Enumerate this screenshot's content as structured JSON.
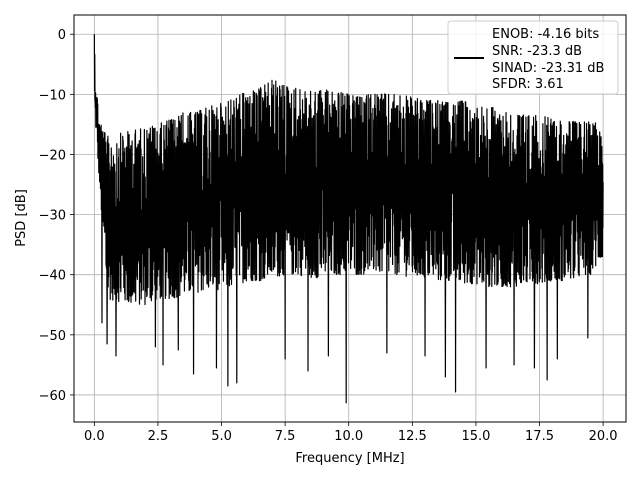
{
  "chart_data": {
    "type": "line",
    "xlabel": "Frequency [MHz]",
    "ylabel": "PSD [dB]",
    "xlim": [
      -0.8,
      20.9
    ],
    "ylim": [
      -64.5,
      3.2
    ],
    "grid": true,
    "x_ticks": [
      0.0,
      2.5,
      5.0,
      7.5,
      10.0,
      12.5,
      15.0,
      17.5,
      20.0
    ],
    "x_tick_labels": [
      "0.0",
      "2.5",
      "5.0",
      "7.5",
      "10.0",
      "12.5",
      "15.0",
      "17.5",
      "20.0"
    ],
    "y_ticks": [
      0,
      -10,
      -20,
      -30,
      -40,
      -50,
      -60
    ],
    "y_tick_labels": [
      "0",
      "−10",
      "−20",
      "−30",
      "−40",
      "−50",
      "−60"
    ],
    "legend_position": "top-right",
    "legend_lines": [
      "ENOB: -4.16 bits",
      "SNR: -23.3 dB",
      "SINAD: -23.31 dB",
      "SFDR: 3.61"
    ],
    "line_color": "#000000",
    "series": [
      {
        "upper_envelope": [
          [
            0.0,
            0.0
          ],
          [
            0.05,
            -7.5
          ],
          [
            0.2,
            -14.0
          ],
          [
            0.5,
            -17.0
          ],
          [
            1.0,
            -16.5
          ],
          [
            1.5,
            -16.0
          ],
          [
            2.0,
            -15.5
          ],
          [
            2.5,
            -15.0
          ],
          [
            3.0,
            -14.0
          ],
          [
            3.5,
            -13.0
          ],
          [
            4.0,
            -13.0
          ],
          [
            4.5,
            -12.0
          ],
          [
            5.0,
            -11.5
          ],
          [
            5.5,
            -10.5
          ],
          [
            6.0,
            -9.5
          ],
          [
            6.5,
            -9.0
          ],
          [
            7.0,
            -7.5
          ],
          [
            7.5,
            -8.5
          ],
          [
            8.0,
            -9.0
          ],
          [
            8.5,
            -9.5
          ],
          [
            9.0,
            -9.0
          ],
          [
            9.5,
            -9.5
          ],
          [
            10.0,
            -10.0
          ],
          [
            10.5,
            -10.5
          ],
          [
            11.0,
            -9.5
          ],
          [
            11.5,
            -10.0
          ],
          [
            12.0,
            -10.0
          ],
          [
            12.5,
            -10.5
          ],
          [
            13.0,
            -11.0
          ],
          [
            13.5,
            -11.0
          ],
          [
            14.0,
            -11.5
          ],
          [
            14.5,
            -11.0
          ],
          [
            15.0,
            -12.0
          ],
          [
            15.5,
            -12.0
          ],
          [
            16.0,
            -12.5
          ],
          [
            16.5,
            -13.0
          ],
          [
            17.0,
            -13.5
          ],
          [
            17.5,
            -13.5
          ],
          [
            18.0,
            -14.0
          ],
          [
            18.5,
            -14.5
          ],
          [
            19.0,
            -14.5
          ],
          [
            19.5,
            -14.5
          ],
          [
            20.0,
            -14.5
          ]
        ],
        "lower_envelope": [
          [
            0.0,
            -12.0
          ],
          [
            0.5,
            -44.0
          ],
          [
            1.0,
            -44.5
          ],
          [
            1.5,
            -45.0
          ],
          [
            2.0,
            -45.0
          ],
          [
            2.5,
            -44.0
          ],
          [
            3.0,
            -44.0
          ],
          [
            3.5,
            -43.5
          ],
          [
            4.0,
            -43.0
          ],
          [
            4.5,
            -42.5
          ],
          [
            5.0,
            -42.5
          ],
          [
            5.5,
            -42.0
          ],
          [
            6.0,
            -41.0
          ],
          [
            6.5,
            -41.0
          ],
          [
            7.0,
            -40.5
          ],
          [
            7.5,
            -40.0
          ],
          [
            8.0,
            -40.0
          ],
          [
            8.5,
            -40.5
          ],
          [
            9.0,
            -40.5
          ],
          [
            9.5,
            -40.0
          ],
          [
            10.0,
            -40.0
          ],
          [
            10.5,
            -40.0
          ],
          [
            11.0,
            -39.5
          ],
          [
            11.5,
            -40.0
          ],
          [
            12.0,
            -40.0
          ],
          [
            12.5,
            -40.5
          ],
          [
            13.0,
            -40.5
          ],
          [
            13.5,
            -41.0
          ],
          [
            14.0,
            -41.0
          ],
          [
            14.5,
            -41.5
          ],
          [
            15.0,
            -41.5
          ],
          [
            15.5,
            -42.0
          ],
          [
            16.0,
            -42.0
          ],
          [
            16.5,
            -42.0
          ],
          [
            17.0,
            -41.5
          ],
          [
            17.5,
            -41.5
          ],
          [
            18.0,
            -41.0
          ],
          [
            18.5,
            -41.0
          ],
          [
            19.0,
            -40.5
          ],
          [
            19.5,
            -40.0
          ],
          [
            20.0,
            -37.0
          ]
        ],
        "spikes": [
          [
            0.3,
            -48.0
          ],
          [
            0.5,
            -51.5
          ],
          [
            0.85,
            -53.5
          ],
          [
            2.4,
            -52.0
          ],
          [
            2.7,
            -55.0
          ],
          [
            3.3,
            -52.5
          ],
          [
            3.9,
            -56.5
          ],
          [
            4.8,
            -55.5
          ],
          [
            5.25,
            -58.5
          ],
          [
            5.6,
            -58.0
          ],
          [
            7.5,
            -54.0
          ],
          [
            8.4,
            -56.0
          ],
          [
            9.2,
            -53.5
          ],
          [
            9.9,
            -61.3
          ],
          [
            11.5,
            -53.0
          ],
          [
            13.0,
            -53.5
          ],
          [
            13.8,
            -57.0
          ],
          [
            14.2,
            -59.5
          ],
          [
            15.4,
            -55.5
          ],
          [
            16.5,
            -55.0
          ],
          [
            17.3,
            -55.5
          ],
          [
            17.8,
            -57.5
          ],
          [
            18.2,
            -54.0
          ],
          [
            19.4,
            -50.5
          ]
        ]
      }
    ]
  }
}
